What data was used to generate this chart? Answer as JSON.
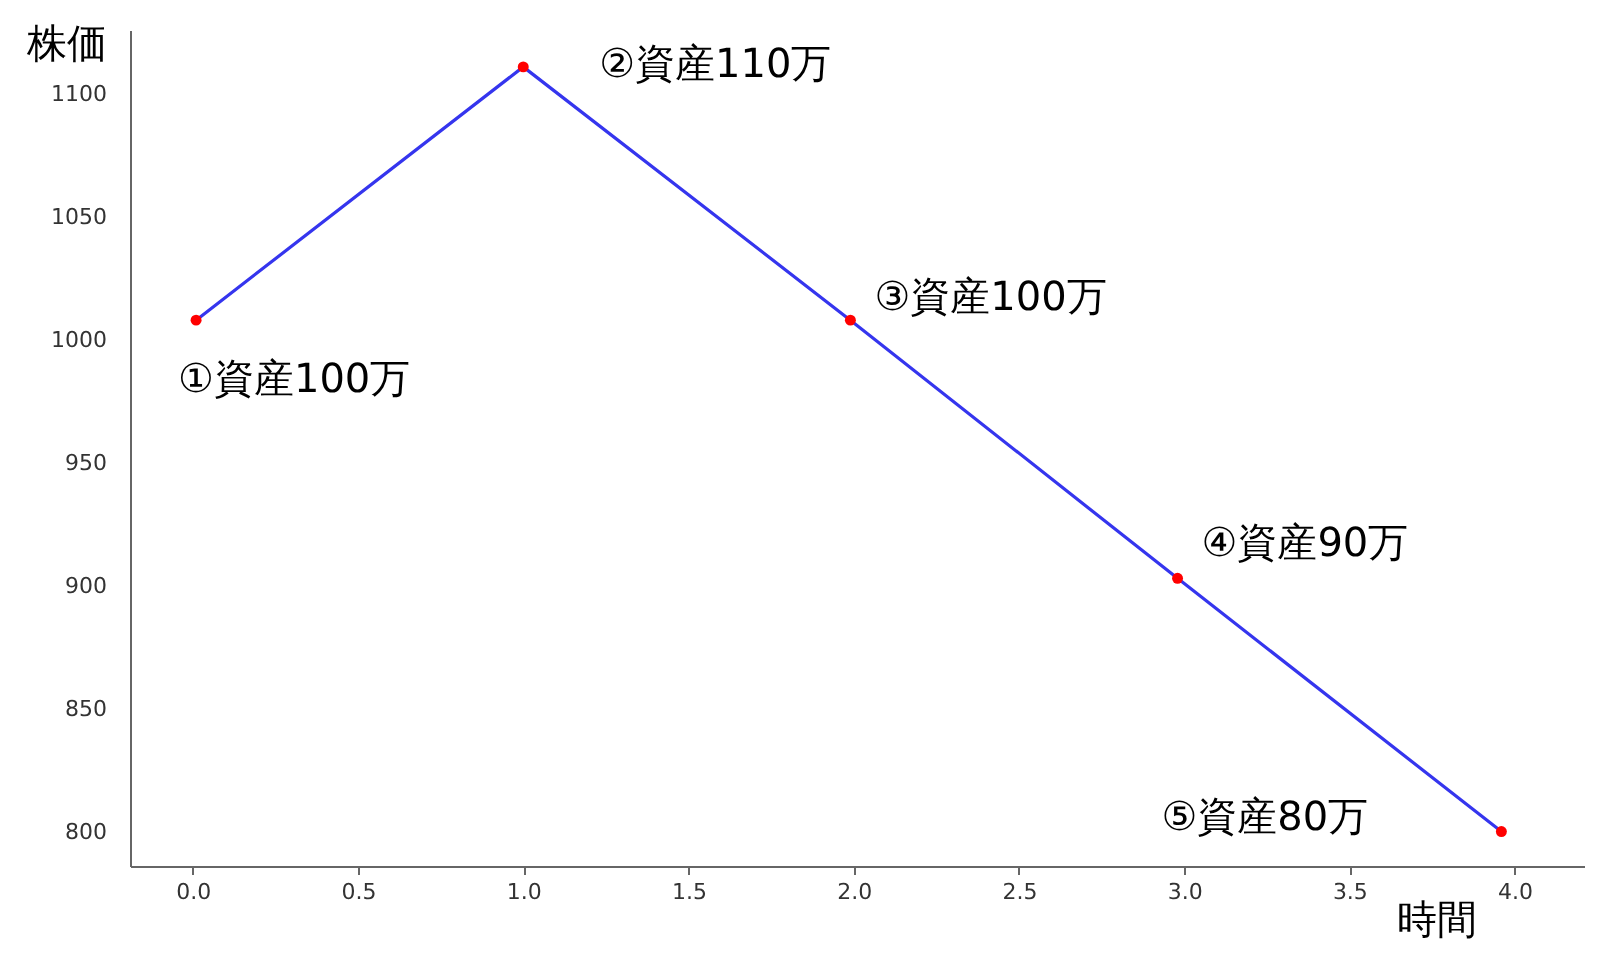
{
  "chart_data": {
    "type": "line",
    "xlabel": "時間",
    "ylabel": "株価",
    "x": [
      0.01,
      1,
      1.99,
      2.98,
      3.96
    ],
    "series": [
      {
        "color": "#3535ee",
        "colors": [
          "#ff0000",
          "#ff0000",
          "#ff0000",
          "#ff0000",
          "#ff0000"
        ],
        "values": [
          1008,
          1111,
          1008,
          903,
          800
        ]
      }
    ],
    "marker": "circle",
    "xlim": [
      -0.19,
      4.21
    ],
    "ylim": [
      786,
      1126
    ],
    "xticks": [
      {
        "value": 0,
        "label": "0.0"
      },
      {
        "value": 0.5,
        "label": "0.5"
      },
      {
        "value": 1,
        "label": "1.0"
      },
      {
        "value": 1.5,
        "label": "1.5"
      },
      {
        "value": 2,
        "label": "2.0"
      },
      {
        "value": 2.5,
        "label": "2.5"
      },
      {
        "value": 3,
        "label": "3.0"
      },
      {
        "value": 3.5,
        "label": "3.5"
      },
      {
        "value": 4,
        "label": "4.0"
      }
    ],
    "yticks": [
      800,
      850,
      900,
      950,
      1000,
      1050,
      1100
    ],
    "annotations": [
      "①資産100万",
      "②資産110万",
      "③資産100万",
      "④資産90万",
      "⑤資産80万"
    ]
  }
}
